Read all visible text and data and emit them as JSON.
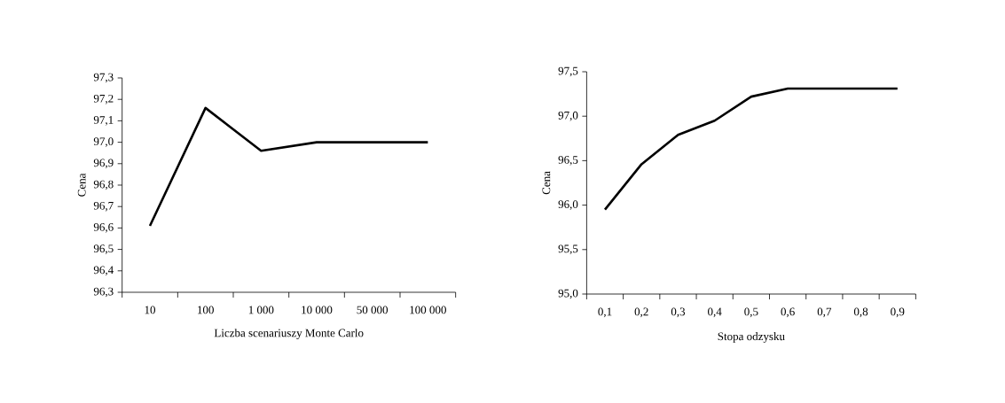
{
  "chart_data": [
    {
      "type": "line",
      "xlabel": "Liczba scenariuszy Monte Carlo",
      "ylabel": "Cena",
      "categories": [
        "10",
        "100",
        "1 000",
        "10 000",
        "50 000",
        "100 000"
      ],
      "values": [
        96.61,
        97.16,
        96.96,
        97.0,
        97.0,
        97.0
      ],
      "color": "#000000",
      "ylim": [
        96.3,
        97.3
      ],
      "yticks": [
        {
          "value": 96.3,
          "label": "96,3"
        },
        {
          "value": 96.4,
          "label": "96,4"
        },
        {
          "value": 96.5,
          "label": "96,5"
        },
        {
          "value": 96.6,
          "label": "96,6"
        },
        {
          "value": 96.7,
          "label": "96,7"
        },
        {
          "value": 96.8,
          "label": "96,8"
        },
        {
          "value": 96.9,
          "label": "96,9"
        },
        {
          "value": 97.0,
          "label": "97,0"
        },
        {
          "value": 97.1,
          "label": "97,1"
        },
        {
          "value": 97.2,
          "label": "97,2"
        },
        {
          "value": 97.3,
          "label": "97,3"
        }
      ]
    },
    {
      "type": "line",
      "xlabel": "Stopa odzysku",
      "ylabel": "Cena",
      "categories": [
        "0,1",
        "0,2",
        "0,3",
        "0,4",
        "0,5",
        "0,6",
        "0,7",
        "0,8",
        "0,9"
      ],
      "values": [
        95.95,
        96.46,
        96.79,
        96.95,
        97.22,
        97.31,
        97.31,
        97.31,
        97.31
      ],
      "color": "#000000",
      "ylim": [
        95.0,
        97.5
      ],
      "yticks": [
        {
          "value": 95.0,
          "label": "95,0"
        },
        {
          "value": 95.5,
          "label": "95,5"
        },
        {
          "value": 96.0,
          "label": "96,0"
        },
        {
          "value": 96.5,
          "label": "96,5"
        },
        {
          "value": 97.0,
          "label": "97,0"
        },
        {
          "value": 97.5,
          "label": "97,5"
        }
      ]
    }
  ]
}
